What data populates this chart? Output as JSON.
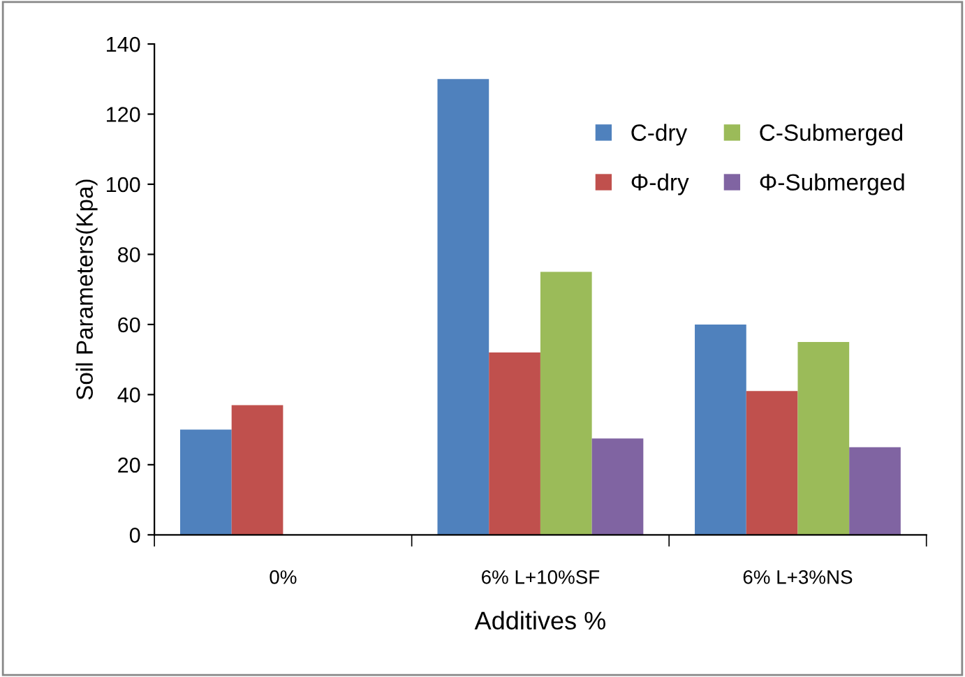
{
  "chart_data": {
    "type": "bar",
    "xlabel": "Additives %",
    "ylabel": "Soil Parameters(Kpa)",
    "categories": [
      "0%",
      "6% L+10%SF",
      "6% L+3%NS"
    ],
    "series": [
      {
        "name": "C-dry",
        "color": "#4f81bd",
        "values": [
          30,
          130,
          60
        ]
      },
      {
        "name": "Φ-dry",
        "color": "#c0504d",
        "values": [
          37,
          52,
          41
        ]
      },
      {
        "name": "C-Submerged",
        "color": "#9bbb59",
        "values": [
          null,
          75,
          55
        ]
      },
      {
        "name": "Φ-Submerged",
        "color": "#8064a2",
        "values": [
          null,
          27.5,
          25
        ]
      }
    ],
    "ylim": [
      0,
      140
    ],
    "yticks": [
      0,
      20,
      40,
      60,
      80,
      100,
      120,
      140
    ],
    "grid": false,
    "legend": "top right"
  }
}
